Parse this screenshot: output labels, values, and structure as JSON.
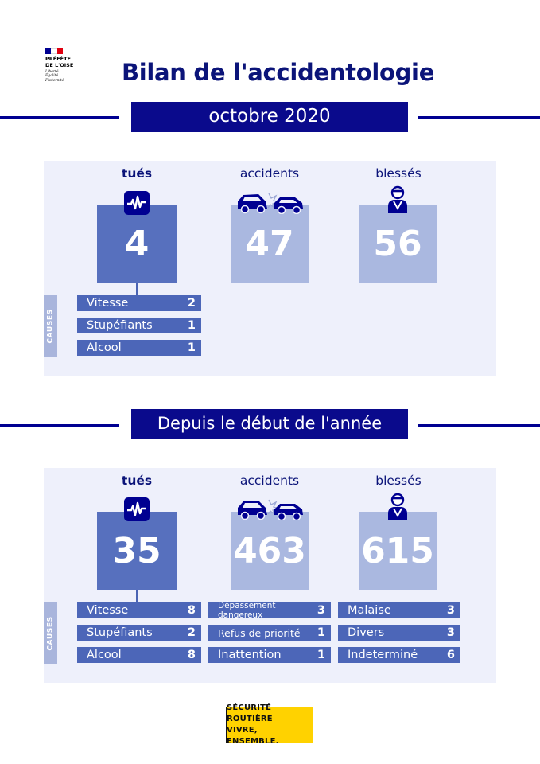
{
  "header": {
    "prefecture_lines": [
      "PRÉFÈTE",
      "DE L'OISE"
    ],
    "motto_lines": [
      "Liberté",
      "Égalité",
      "Fraternité"
    ],
    "flag_colors": [
      "#000091",
      "#ffffff",
      "#e1000f"
    ],
    "title": "Bilan de l'accidentologie"
  },
  "month": {
    "banner": "octobre 2020",
    "killed": {
      "label": "tués",
      "value": "4"
    },
    "accidents": {
      "label": "accidents",
      "value": "47"
    },
    "injured": {
      "label": "blessés",
      "value": "56"
    },
    "causes_label": "CAUSES",
    "causes": [
      {
        "name": "Vitesse",
        "value": "2"
      },
      {
        "name": "Stupéfiants",
        "value": "1"
      },
      {
        "name": "Alcool",
        "value": "1"
      }
    ]
  },
  "year": {
    "banner": "Depuis le début de l'année",
    "killed": {
      "label": "tués",
      "value": "35"
    },
    "accidents": {
      "label": "accidents",
      "value": "463"
    },
    "injured": {
      "label": "blessés",
      "value": "615"
    },
    "causes_label": "CAUSES",
    "causes_col1": [
      {
        "name": "Vitesse",
        "value": "8"
      },
      {
        "name": "Stupéfiants",
        "value": "2"
      },
      {
        "name": "Alcool",
        "value": "8"
      }
    ],
    "causes_col2": [
      {
        "name": "Dépassement dangereux",
        "value": "3"
      },
      {
        "name": "Refus de priorité",
        "value": "1"
      },
      {
        "name": "Inattention",
        "value": "1"
      }
    ],
    "causes_col3": [
      {
        "name": "Malaise",
        "value": "3"
      },
      {
        "name": "Divers",
        "value": "3"
      },
      {
        "name": "Indeterminé",
        "value": "6"
      }
    ]
  },
  "footer": {
    "logo_line1": "SÉCURITÉ ROUTIÈRE",
    "logo_line2": "VIVRE, ENSEMBLE.",
    "logo_color": "#ffd200"
  },
  "icons": {
    "killed": "heartbeat-monitor-icon",
    "accidents": "car-crash-icon",
    "injured": "injured-person-icon"
  }
}
